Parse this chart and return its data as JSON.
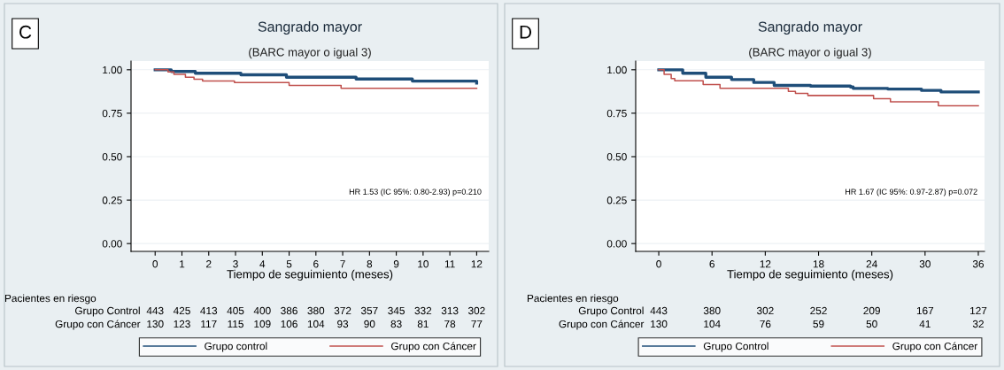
{
  "chart_data": [
    {
      "type": "step",
      "title": "Sangrado mayor",
      "subtitle": "(BARC mayor o igual 3)",
      "xlabel": "Tiempo de seguimiento (meses)",
      "series": [
        {
          "name": "Grupo control",
          "color": "#1f4e79",
          "x": [
            0,
            0.6,
            1.5,
            3.2,
            4.9,
            7.5,
            9.6,
            12
          ],
          "values": [
            1.0,
            0.99,
            0.98,
            0.971,
            0.957,
            0.947,
            0.935,
            0.923
          ]
        },
        {
          "name": "Grupo con Cáncer",
          "color": "#c0504d",
          "x": [
            0,
            0.48,
            0.7,
            1.13,
            1.45,
            1.77,
            2.96,
            5.0,
            6.94,
            12
          ],
          "values": [
            1.0,
            0.988,
            0.974,
            0.957,
            0.946,
            0.935,
            0.927,
            0.91,
            0.893,
            0.893
          ]
        }
      ],
      "xlim": [
        -0.9,
        12.45
      ],
      "xticks": [
        0,
        1,
        2,
        3,
        4,
        5,
        6,
        7,
        8,
        9,
        10,
        11,
        12
      ],
      "ylim": [
        -0.045,
        1.05
      ],
      "yticks": [
        {
          "value": 0,
          "label": "0.00"
        },
        {
          "value": 0.25,
          "label": "0.25"
        },
        {
          "value": 0.5,
          "label": "0.50"
        },
        {
          "value": 0.75,
          "label": "0.75"
        },
        {
          "value": 1,
          "label": "1.00"
        }
      ],
      "grid": "y",
      "legend": "bottom",
      "line_style": "solid",
      "marker": "none",
      "annotations": [
        "C",
        "HR 1.53 (IC 95%: 0.80-2.93) p=0.210",
        "Pacientes en riesgo",
        "Grupo Control",
        "443",
        "425",
        "413",
        "405",
        "400",
        "386",
        "380",
        "372",
        "357",
        "345",
        "332",
        "313",
        "302",
        "Grupo con Cáncer",
        "130",
        "123",
        "117",
        "115",
        "109",
        "106",
        "104",
        "93",
        "90",
        "83",
        "81",
        "78",
        "77"
      ]
    },
    {
      "type": "step",
      "title": "Sangrado mayor",
      "subtitle": "(BARC mayor o igual 3)",
      "xlabel": "Tiempo de seguimiento (meses)",
      "series": [
        {
          "name": "Grupo Control",
          "color": "#1f4e79",
          "x": [
            0,
            2.7,
            5.3,
            8.2,
            10.7,
            13.0,
            17.1,
            21.6,
            21.9,
            25.8,
            29.6,
            31.8,
            36
          ],
          "values": [
            1.0,
            0.98,
            0.957,
            0.944,
            0.927,
            0.91,
            0.906,
            0.901,
            0.893,
            0.889,
            0.881,
            0.872,
            0.872
          ]
        },
        {
          "name": "Grupo con Cáncer",
          "color": "#c0504d",
          "x": [
            0,
            0.6,
            1.4,
            1.8,
            5.0,
            6.9,
            14.6,
            15.4,
            16.8,
            24.2,
            26.1,
            31.5,
            36
          ],
          "values": [
            1.0,
            0.974,
            0.949,
            0.937,
            0.915,
            0.893,
            0.876,
            0.864,
            0.852,
            0.833,
            0.816,
            0.793,
            0.793
          ]
        }
      ],
      "xlim": [
        -2.6,
        36.7
      ],
      "xticks": [
        0,
        6,
        12,
        18,
        24,
        30,
        36
      ],
      "ylim": [
        -0.045,
        1.05
      ],
      "yticks": [
        {
          "value": 0,
          "label": "0.00"
        },
        {
          "value": 0.25,
          "label": "0.25"
        },
        {
          "value": 0.5,
          "label": "0.50"
        },
        {
          "value": 0.75,
          "label": "0.75"
        },
        {
          "value": 1,
          "label": "1.00"
        }
      ],
      "grid": "y",
      "legend": "bottom",
      "line_style": "solid",
      "marker": "none",
      "annotations": [
        "D",
        "HR 1.67 (IC 95%: 0.97-2.87) p=0.072",
        "Pacientes en riesgo",
        "Grupo Control",
        "443",
        "380",
        "302",
        "252",
        "209",
        "167",
        "127",
        "Grupo con Cáncer",
        "130",
        "104",
        "76",
        "59",
        "50",
        "41",
        "32"
      ]
    }
  ]
}
